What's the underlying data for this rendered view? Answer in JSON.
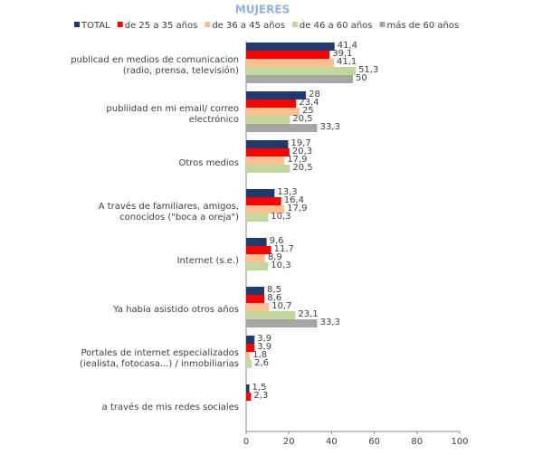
{
  "chart_data": {
    "type": "hbar",
    "title": "MUJERES",
    "categories": [
      [
        "publicad en medios de comunicacion",
        "(radio, prensa, televisión)"
      ],
      [
        "publiidad en mi email/ correo",
        "electrónico"
      ],
      [
        "Otros medios"
      ],
      [
        "A través de familiares, amigos,",
        "conocidos (\"boca a oreja\")"
      ],
      [
        "Internet (s.e.)"
      ],
      [
        "Ya había asistido otros años"
      ],
      [
        "Portales de internet especializados",
        "(iealista, fotocasa...) / inmobiliarias"
      ],
      [
        "a través de mis redes sociales"
      ]
    ],
    "series": [
      {
        "name": "TOTAL",
        "color": "#1f3a6e",
        "values": [
          41.4,
          28,
          19.7,
          13.3,
          9.6,
          8.5,
          3.9,
          1.5
        ],
        "value_labels": [
          "41,4",
          "28",
          "19,7",
          "13,3",
          "9,6",
          "8,5",
          "3,9",
          "1,5"
        ]
      },
      {
        "name": "de 25 a 35 años",
        "color": "#ff0000",
        "values": [
          39.1,
          23.4,
          20.3,
          16.4,
          11.7,
          8.6,
          3.9,
          2.3
        ],
        "value_labels": [
          "39,1",
          "23,4",
          "20,3",
          "16,4",
          "11,7",
          "8,6",
          "3,9",
          "2,3"
        ]
      },
      {
        "name": "de 36 a 45 años",
        "color": "#fac090",
        "values": [
          41.1,
          25,
          17.9,
          17.9,
          8.9,
          10.7,
          1.8,
          null
        ],
        "value_labels": [
          "41,1",
          "25",
          "17,9",
          "17,9",
          "8,9",
          "10,7",
          "1,8",
          null
        ]
      },
      {
        "name": "de 46 a 60 años",
        "color": "#c3d69b",
        "values": [
          51.3,
          20.5,
          20.5,
          10.3,
          10.3,
          23.1,
          2.6,
          null
        ],
        "value_labels": [
          "51,3",
          "20,5",
          "20,5",
          "10,3",
          "10,3",
          "23,1",
          "2,6",
          null
        ]
      },
      {
        "name": "más de 60 años",
        "color": "#a6a6a6",
        "values": [
          50,
          33.3,
          null,
          null,
          null,
          33.3,
          null,
          null
        ],
        "value_labels": [
          "50",
          "33,3",
          null,
          null,
          null,
          "33,3",
          null,
          null
        ]
      }
    ],
    "xlim": [
      0,
      100
    ],
    "xticks": [
      0,
      20,
      40,
      60,
      80,
      100
    ]
  }
}
